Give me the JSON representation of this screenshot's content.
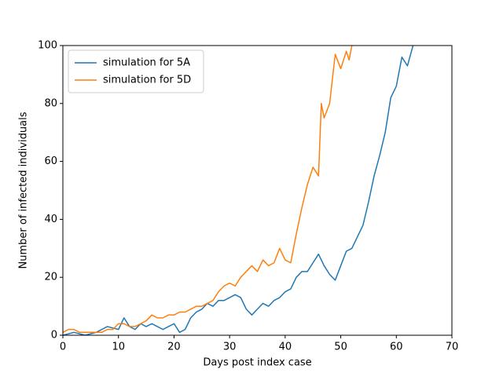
{
  "chart_data": {
    "type": "line",
    "xlabel": "Days post index case",
    "ylabel": "Number of infected individuals",
    "xlim": [
      0,
      70
    ],
    "xticks": [
      0,
      10,
      20,
      30,
      40,
      50,
      60,
      70
    ],
    "ylim": [
      0,
      100
    ],
    "yticks": [
      0,
      20,
      40,
      60,
      80,
      100
    ],
    "legend": "upper left",
    "series": [
      {
        "name": "simulation for 5A",
        "color": "#1f77b4",
        "x": [
          0,
          2,
          4,
          6,
          8,
          10,
          11,
          12,
          13,
          14,
          15,
          16,
          17,
          18,
          19,
          20,
          21,
          22,
          23,
          24,
          25,
          26,
          27,
          28,
          29,
          30,
          31,
          32,
          33,
          34,
          35,
          36,
          37,
          38,
          39,
          40,
          41,
          42,
          43,
          44,
          45,
          46,
          47,
          48,
          49,
          50,
          51,
          52,
          53,
          54,
          55,
          56,
          57,
          58,
          59,
          60,
          61,
          62,
          63
        ],
        "values": [
          0,
          1,
          0,
          1,
          3,
          2,
          6,
          3,
          2,
          4,
          3,
          4,
          3,
          2,
          3,
          4,
          1,
          2,
          6,
          8,
          9,
          11,
          10,
          12,
          12,
          13,
          14,
          13,
          9,
          7,
          9,
          11,
          10,
          12,
          13,
          15,
          16,
          20,
          22,
          22,
          25,
          28,
          24,
          21,
          19,
          24,
          29,
          30,
          34,
          38,
          46,
          55,
          62,
          70,
          82,
          86,
          96,
          93,
          100
        ]
      },
      {
        "name": "simulation for 5D",
        "color": "#ff7f0e",
        "x": [
          0,
          1,
          2,
          3,
          5,
          7,
          8,
          9,
          10,
          11,
          12,
          13,
          14,
          15,
          16,
          17,
          18,
          19,
          20,
          21,
          22,
          23,
          24,
          25,
          26,
          27,
          28,
          29,
          30,
          31,
          32,
          33,
          34,
          35,
          36,
          37,
          38,
          39,
          40,
          41,
          42,
          43,
          44,
          45,
          46,
          46.5,
          47,
          48,
          49,
          50,
          51,
          51.5,
          52
        ],
        "values": [
          1,
          2,
          2,
          1,
          1,
          1,
          2,
          2,
          4,
          4,
          3,
          3,
          4,
          5,
          7,
          6,
          6,
          7,
          7,
          8,
          8,
          9,
          10,
          10,
          11,
          12,
          15,
          17,
          18,
          17,
          20,
          22,
          24,
          22,
          26,
          24,
          25,
          30,
          26,
          25,
          35,
          44,
          52,
          58,
          55,
          80,
          75,
          80,
          97,
          92,
          98,
          95,
          100
        ]
      }
    ]
  }
}
